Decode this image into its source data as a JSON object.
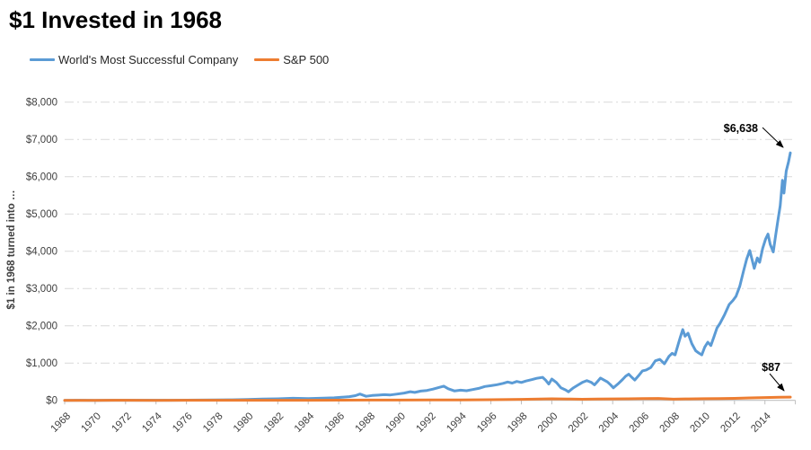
{
  "title": "$1 Invested in 1968",
  "annotations": {
    "company_end": "$6,638",
    "sp500_end": "$87"
  },
  "colors": {
    "background": "#ffffff",
    "company_line": "#5b9bd5",
    "sp500_line": "#ed7d31",
    "gridline": "#d9d9d9",
    "axis": "#bfbfbf",
    "tick_text": "#404040",
    "title_text": "#000000"
  },
  "chart_data": {
    "type": "line",
    "title": "$1 Invested in 1968",
    "xlabel": "",
    "ylabel": "$1 in 1968 turned into …",
    "xlim": [
      1968,
      2016
    ],
    "ylim": [
      0,
      8000
    ],
    "grid": "horizontal dash-dot",
    "legend_position": "top-left",
    "y_ticks": [
      {
        "label": "$0",
        "value": 0
      },
      {
        "label": "$1,000",
        "value": 1000
      },
      {
        "label": "$2,000",
        "value": 2000
      },
      {
        "label": "$3,000",
        "value": 3000
      },
      {
        "label": "$4,000",
        "value": 4000
      },
      {
        "label": "$5,000",
        "value": 5000
      },
      {
        "label": "$6,000",
        "value": 6000
      },
      {
        "label": "$7,000",
        "value": 7000
      },
      {
        "label": "$8,000",
        "value": 8000
      }
    ],
    "x_ticks": [
      {
        "label": "1968",
        "value": 1968
      },
      {
        "label": "1970",
        "value": 1970
      },
      {
        "label": "1972",
        "value": 1972
      },
      {
        "label": "1974",
        "value": 1974
      },
      {
        "label": "1976",
        "value": 1976
      },
      {
        "label": "1978",
        "value": 1978
      },
      {
        "label": "1980",
        "value": 1980
      },
      {
        "label": "1982",
        "value": 1982
      },
      {
        "label": "1984",
        "value": 1984
      },
      {
        "label": "1986",
        "value": 1986
      },
      {
        "label": "1988",
        "value": 1988
      },
      {
        "label": "1990",
        "value": 1990
      },
      {
        "label": "1992",
        "value": 1992
      },
      {
        "label": "1994",
        "value": 1994
      },
      {
        "label": "1996",
        "value": 1996
      },
      {
        "label": "1998",
        "value": 1998
      },
      {
        "label": "2000",
        "value": 2000
      },
      {
        "label": "2002",
        "value": 2002
      },
      {
        "label": "2004",
        "value": 2004
      },
      {
        "label": "2006",
        "value": 2006
      },
      {
        "label": "2008",
        "value": 2008
      },
      {
        "label": "2010",
        "value": 2010
      },
      {
        "label": "2012",
        "value": 2012
      },
      {
        "label": "2014",
        "value": 2014
      }
    ],
    "series": [
      {
        "name": "World's Most Successful Company",
        "color": "#5b9bd5",
        "end_label": "$6,638",
        "end_value": 6638,
        "points": [
          [
            1968,
            1
          ],
          [
            1969,
            1.5
          ],
          [
            1970,
            1.2
          ],
          [
            1971,
            2
          ],
          [
            1972,
            3
          ],
          [
            1973,
            2.5
          ],
          [
            1974,
            2
          ],
          [
            1975,
            3.5
          ],
          [
            1976,
            5
          ],
          [
            1977,
            7
          ],
          [
            1978,
            10
          ],
          [
            1979,
            15
          ],
          [
            1980,
            25
          ],
          [
            1981,
            33
          ],
          [
            1982,
            42
          ],
          [
            1983,
            55
          ],
          [
            1984,
            48
          ],
          [
            1985,
            58
          ],
          [
            1985.7,
            68
          ],
          [
            1986.2,
            82
          ],
          [
            1986.7,
            100
          ],
          [
            1987.1,
            125
          ],
          [
            1987.4,
            168
          ],
          [
            1987.8,
            108
          ],
          [
            1988.2,
            130
          ],
          [
            1988.6,
            140
          ],
          [
            1989,
            152
          ],
          [
            1989.4,
            144
          ],
          [
            1989.8,
            166
          ],
          [
            1990.3,
            196
          ],
          [
            1990.7,
            232
          ],
          [
            1991,
            212
          ],
          [
            1991.4,
            248
          ],
          [
            1991.8,
            266
          ],
          [
            1992.2,
            302
          ],
          [
            1992.6,
            346
          ],
          [
            1992.9,
            380
          ],
          [
            1993.2,
            310
          ],
          [
            1993.6,
            252
          ],
          [
            1994,
            272
          ],
          [
            1994.4,
            258
          ],
          [
            1994.8,
            290
          ],
          [
            1995.2,
            320
          ],
          [
            1995.6,
            372
          ],
          [
            1996,
            392
          ],
          [
            1996.4,
            420
          ],
          [
            1996.8,
            456
          ],
          [
            1997.1,
            492
          ],
          [
            1997.4,
            462
          ],
          [
            1997.7,
            506
          ],
          [
            1998,
            480
          ],
          [
            1998.3,
            518
          ],
          [
            1998.7,
            556
          ],
          [
            1999,
            590
          ],
          [
            1999.4,
            618
          ],
          [
            1999.6,
            540
          ],
          [
            1999.8,
            435
          ],
          [
            2000,
            570
          ],
          [
            2000.3,
            480
          ],
          [
            2000.6,
            335
          ],
          [
            2000.9,
            280
          ],
          [
            2001.1,
            228
          ],
          [
            2001.4,
            330
          ],
          [
            2001.7,
            405
          ],
          [
            2002,
            480
          ],
          [
            2002.3,
            530
          ],
          [
            2002.6,
            480
          ],
          [
            2002.8,
            415
          ],
          [
            2003,
            505
          ],
          [
            2003.2,
            598
          ],
          [
            2003.45,
            540
          ],
          [
            2003.65,
            495
          ],
          [
            2003.85,
            420
          ],
          [
            2004.05,
            335
          ],
          [
            2004.35,
            440
          ],
          [
            2004.65,
            560
          ],
          [
            2004.85,
            645
          ],
          [
            2005.05,
            700
          ],
          [
            2005.25,
            620
          ],
          [
            2005.45,
            545
          ],
          [
            2005.7,
            660
          ],
          [
            2005.95,
            790
          ],
          [
            2006.2,
            815
          ],
          [
            2006.5,
            880
          ],
          [
            2006.8,
            1060
          ],
          [
            2007.1,
            1100
          ],
          [
            2007.4,
            980
          ],
          [
            2007.7,
            1180
          ],
          [
            2007.9,
            1260
          ],
          [
            2008.1,
            1220
          ],
          [
            2008.3,
            1500
          ],
          [
            2008.45,
            1700
          ],
          [
            2008.6,
            1900
          ],
          [
            2008.75,
            1720
          ],
          [
            2008.95,
            1800
          ],
          [
            2009.2,
            1520
          ],
          [
            2009.45,
            1330
          ],
          [
            2009.65,
            1270
          ],
          [
            2009.85,
            1220
          ],
          [
            2010.05,
            1430
          ],
          [
            2010.25,
            1560
          ],
          [
            2010.45,
            1470
          ],
          [
            2010.65,
            1700
          ],
          [
            2010.85,
            1940
          ],
          [
            2011.05,
            2065
          ],
          [
            2011.35,
            2300
          ],
          [
            2011.65,
            2570
          ],
          [
            2011.9,
            2680
          ],
          [
            2012.1,
            2790
          ],
          [
            2012.35,
            3060
          ],
          [
            2012.6,
            3480
          ],
          [
            2012.8,
            3790
          ],
          [
            2013,
            4020
          ],
          [
            2013.15,
            3780
          ],
          [
            2013.3,
            3540
          ],
          [
            2013.5,
            3820
          ],
          [
            2013.65,
            3700
          ],
          [
            2013.85,
            4080
          ],
          [
            2014.05,
            4330
          ],
          [
            2014.2,
            4460
          ],
          [
            2014.35,
            4180
          ],
          [
            2014.55,
            3980
          ],
          [
            2014.7,
            4420
          ],
          [
            2014.85,
            4820
          ],
          [
            2015,
            5220
          ],
          [
            2015.15,
            5900
          ],
          [
            2015.25,
            5560
          ],
          [
            2015.4,
            6150
          ],
          [
            2015.55,
            6400
          ],
          [
            2015.67,
            6638
          ]
        ]
      },
      {
        "name": "S&P 500",
        "color": "#ed7d31",
        "end_label": "$87",
        "end_value": 87,
        "points": [
          [
            1968,
            1
          ],
          [
            1970,
            0.9
          ],
          [
            1972,
            1.3
          ],
          [
            1974,
            0.8
          ],
          [
            1976,
            1.4
          ],
          [
            1978,
            1.5
          ],
          [
            1980,
            2.2
          ],
          [
            1982,
            2.6
          ],
          [
            1984,
            3.6
          ],
          [
            1986,
            5.5
          ],
          [
            1988,
            6.5
          ],
          [
            1990,
            8
          ],
          [
            1992,
            10.5
          ],
          [
            1994,
            11.5
          ],
          [
            1996,
            17
          ],
          [
            1998,
            26
          ],
          [
            2000,
            40
          ],
          [
            2001,
            35
          ],
          [
            2002,
            28
          ],
          [
            2003,
            33
          ],
          [
            2004,
            38
          ],
          [
            2005,
            40
          ],
          [
            2006,
            45
          ],
          [
            2007,
            50
          ],
          [
            2008,
            32
          ],
          [
            2009,
            38
          ],
          [
            2010,
            44
          ],
          [
            2011,
            45
          ],
          [
            2012,
            52
          ],
          [
            2013,
            65
          ],
          [
            2014,
            75
          ],
          [
            2015,
            82
          ],
          [
            2015.67,
            87
          ]
        ]
      }
    ]
  }
}
